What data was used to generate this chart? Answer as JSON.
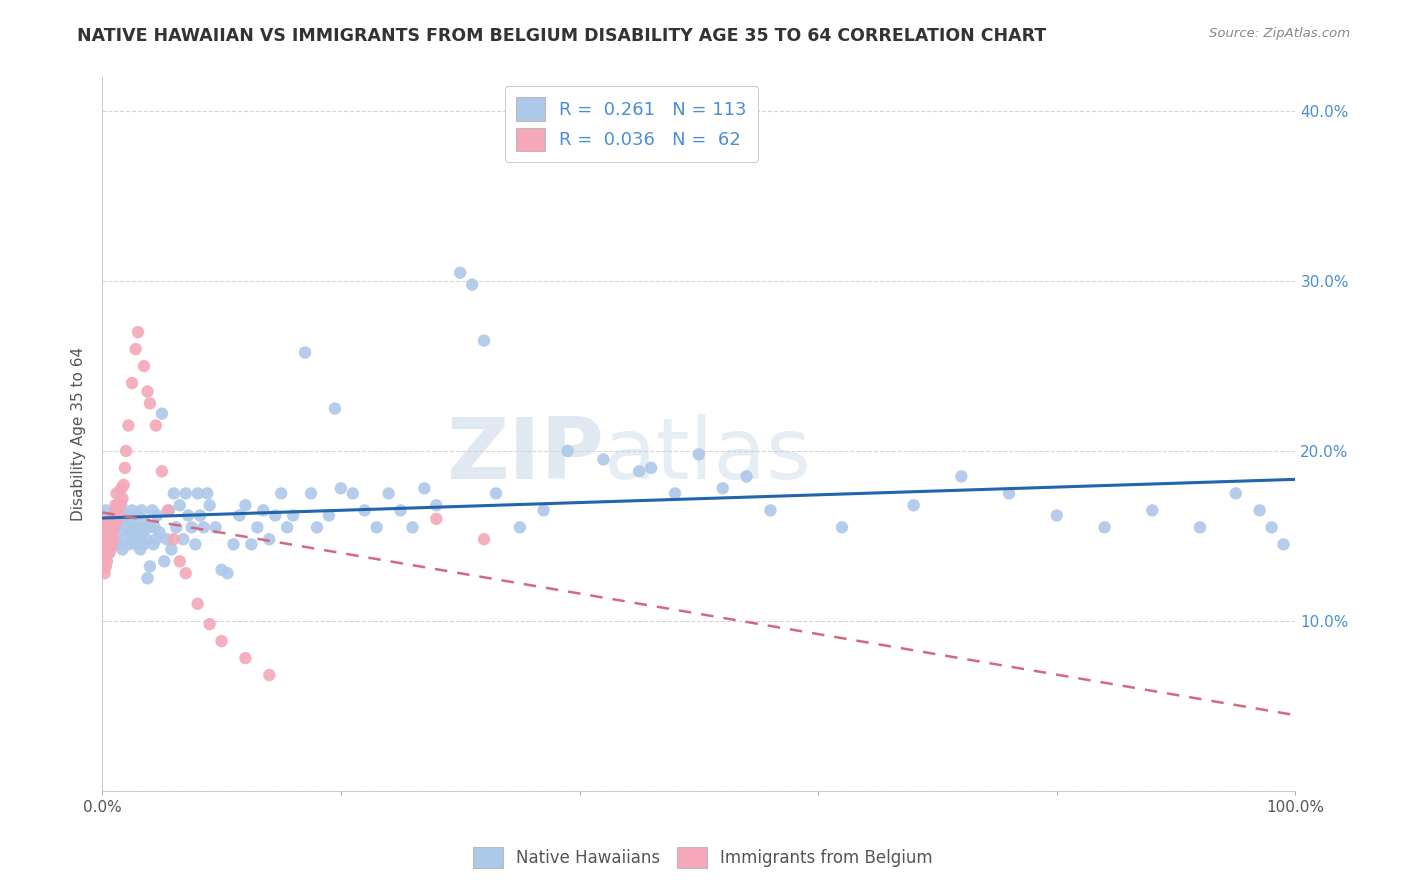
{
  "title": "NATIVE HAWAIIAN VS IMMIGRANTS FROM BELGIUM DISABILITY AGE 35 TO 64 CORRELATION CHART",
  "source": "Source: ZipAtlas.com",
  "ylabel": "Disability Age 35 to 64",
  "xlim": [
    0,
    1.0
  ],
  "ylim": [
    0,
    0.42
  ],
  "xticks": [
    0.0,
    0.2,
    0.4,
    0.6,
    0.8,
    1.0
  ],
  "xticklabels": [
    "0.0%",
    "",
    "",
    "",
    "",
    "100.0%"
  ],
  "yticks": [
    0.0,
    0.1,
    0.2,
    0.3,
    0.4
  ],
  "yticklabels_right": [
    "",
    "10.0%",
    "20.0%",
    "30.0%",
    "40.0%"
  ],
  "blue_R": 0.261,
  "blue_N": 113,
  "pink_R": 0.036,
  "pink_N": 62,
  "blue_color": "#adc8e8",
  "pink_color": "#f4a8ba",
  "blue_line_color": "#2166ac",
  "pink_line_color": "#d46880",
  "watermark_zip": "ZIP",
  "watermark_atlas": "atlas",
  "blue_points_x": [
    0.003,
    0.005,
    0.007,
    0.009,
    0.01,
    0.011,
    0.012,
    0.013,
    0.015,
    0.016,
    0.017,
    0.018,
    0.019,
    0.02,
    0.021,
    0.022,
    0.023,
    0.024,
    0.025,
    0.026,
    0.027,
    0.028,
    0.029,
    0.03,
    0.031,
    0.032,
    0.033,
    0.034,
    0.035,
    0.036,
    0.037,
    0.038,
    0.039,
    0.04,
    0.042,
    0.043,
    0.044,
    0.045,
    0.046,
    0.048,
    0.05,
    0.052,
    0.054,
    0.056,
    0.058,
    0.06,
    0.062,
    0.065,
    0.068,
    0.07,
    0.072,
    0.075,
    0.078,
    0.08,
    0.082,
    0.085,
    0.088,
    0.09,
    0.095,
    0.1,
    0.105,
    0.11,
    0.115,
    0.12,
    0.125,
    0.13,
    0.135,
    0.14,
    0.145,
    0.15,
    0.155,
    0.16,
    0.17,
    0.175,
    0.18,
    0.19,
    0.195,
    0.2,
    0.21,
    0.22,
    0.23,
    0.24,
    0.25,
    0.26,
    0.27,
    0.28,
    0.3,
    0.31,
    0.32,
    0.33,
    0.35,
    0.37,
    0.39,
    0.42,
    0.45,
    0.48,
    0.52,
    0.56,
    0.62,
    0.68,
    0.72,
    0.76,
    0.8,
    0.84,
    0.88,
    0.92,
    0.95,
    0.97,
    0.98,
    0.99,
    0.46,
    0.5,
    0.54
  ],
  "blue_points_y": [
    0.165,
    0.155,
    0.145,
    0.162,
    0.148,
    0.155,
    0.145,
    0.158,
    0.152,
    0.168,
    0.142,
    0.16,
    0.148,
    0.162,
    0.155,
    0.145,
    0.158,
    0.152,
    0.165,
    0.148,
    0.155,
    0.145,
    0.162,
    0.148,
    0.155,
    0.142,
    0.165,
    0.152,
    0.145,
    0.158,
    0.148,
    0.125,
    0.155,
    0.132,
    0.165,
    0.145,
    0.155,
    0.148,
    0.162,
    0.152,
    0.222,
    0.135,
    0.148,
    0.165,
    0.142,
    0.175,
    0.155,
    0.168,
    0.148,
    0.175,
    0.162,
    0.155,
    0.145,
    0.175,
    0.162,
    0.155,
    0.175,
    0.168,
    0.155,
    0.13,
    0.128,
    0.145,
    0.162,
    0.168,
    0.145,
    0.155,
    0.165,
    0.148,
    0.162,
    0.175,
    0.155,
    0.162,
    0.258,
    0.175,
    0.155,
    0.162,
    0.225,
    0.178,
    0.175,
    0.165,
    0.155,
    0.175,
    0.165,
    0.155,
    0.178,
    0.168,
    0.305,
    0.298,
    0.265,
    0.175,
    0.155,
    0.165,
    0.2,
    0.195,
    0.188,
    0.175,
    0.178,
    0.165,
    0.155,
    0.168,
    0.185,
    0.175,
    0.162,
    0.155,
    0.165,
    0.155,
    0.175,
    0.165,
    0.155,
    0.145,
    0.19,
    0.198,
    0.185
  ],
  "pink_points_x": [
    0.001,
    0.001,
    0.001,
    0.002,
    0.002,
    0.002,
    0.002,
    0.003,
    0.003,
    0.003,
    0.003,
    0.004,
    0.004,
    0.004,
    0.005,
    0.005,
    0.005,
    0.006,
    0.006,
    0.006,
    0.007,
    0.007,
    0.007,
    0.008,
    0.008,
    0.008,
    0.009,
    0.009,
    0.01,
    0.01,
    0.011,
    0.011,
    0.012,
    0.012,
    0.013,
    0.014,
    0.015,
    0.016,
    0.017,
    0.018,
    0.019,
    0.02,
    0.022,
    0.025,
    0.028,
    0.03,
    0.035,
    0.038,
    0.04,
    0.045,
    0.05,
    0.055,
    0.06,
    0.065,
    0.07,
    0.08,
    0.09,
    0.1,
    0.12,
    0.14,
    0.28,
    0.32
  ],
  "pink_points_y": [
    0.14,
    0.148,
    0.155,
    0.148,
    0.14,
    0.135,
    0.128,
    0.158,
    0.145,
    0.14,
    0.132,
    0.148,
    0.14,
    0.135,
    0.158,
    0.148,
    0.14,
    0.155,
    0.148,
    0.14,
    0.155,
    0.148,
    0.142,
    0.16,
    0.152,
    0.145,
    0.155,
    0.148,
    0.162,
    0.155,
    0.168,
    0.158,
    0.175,
    0.165,
    0.168,
    0.162,
    0.168,
    0.178,
    0.172,
    0.18,
    0.19,
    0.2,
    0.215,
    0.24,
    0.26,
    0.27,
    0.25,
    0.235,
    0.228,
    0.215,
    0.188,
    0.165,
    0.148,
    0.135,
    0.128,
    0.11,
    0.098,
    0.088,
    0.078,
    0.068,
    0.16,
    0.148
  ]
}
